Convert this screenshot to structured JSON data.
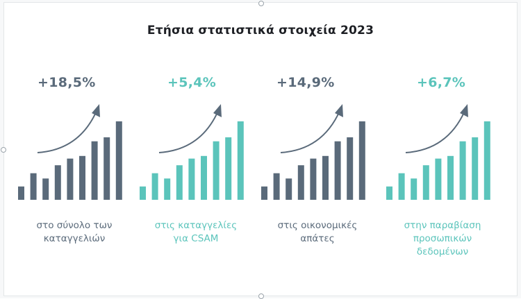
{
  "title": "Ετήσια στατιστικά στοιχεία 2023",
  "colors": {
    "dark": "#5a6a7a",
    "teal": "#5bc4bb",
    "title": "#1d1f24"
  },
  "chart_data": [
    {
      "type": "bar",
      "headline": "+18,5%",
      "caption": "στο σύνολο των\nκαταγγελιών",
      "color": "dark",
      "values": [
        2,
        4,
        3.2,
        5.2,
        6.2,
        6.6,
        8.8,
        9.4,
        11.8
      ],
      "ylim": [
        0,
        12
      ]
    },
    {
      "type": "bar",
      "headline": "+5,4%",
      "caption": "στις καταγγελίες\nγια CSAM",
      "color": "teal",
      "values": [
        2,
        4,
        3.2,
        5.2,
        6.2,
        6.6,
        8.8,
        9.4,
        11.8
      ],
      "ylim": [
        0,
        12
      ]
    },
    {
      "type": "bar",
      "headline": "+14,9%",
      "caption": "στις οικονομικές\nαπάτες",
      "color": "dark",
      "values": [
        2,
        4,
        3.2,
        5.2,
        6.2,
        6.6,
        8.8,
        9.4,
        11.8
      ],
      "ylim": [
        0,
        12
      ]
    },
    {
      "type": "bar",
      "headline": "+6,7%",
      "caption": "στην  παραβίαση\nπροσωπικών\nδεδομένων",
      "color": "teal",
      "values": [
        2,
        4,
        3.2,
        5.2,
        6.2,
        6.6,
        8.8,
        9.4,
        11.8
      ],
      "ylim": [
        0,
        12
      ]
    }
  ]
}
